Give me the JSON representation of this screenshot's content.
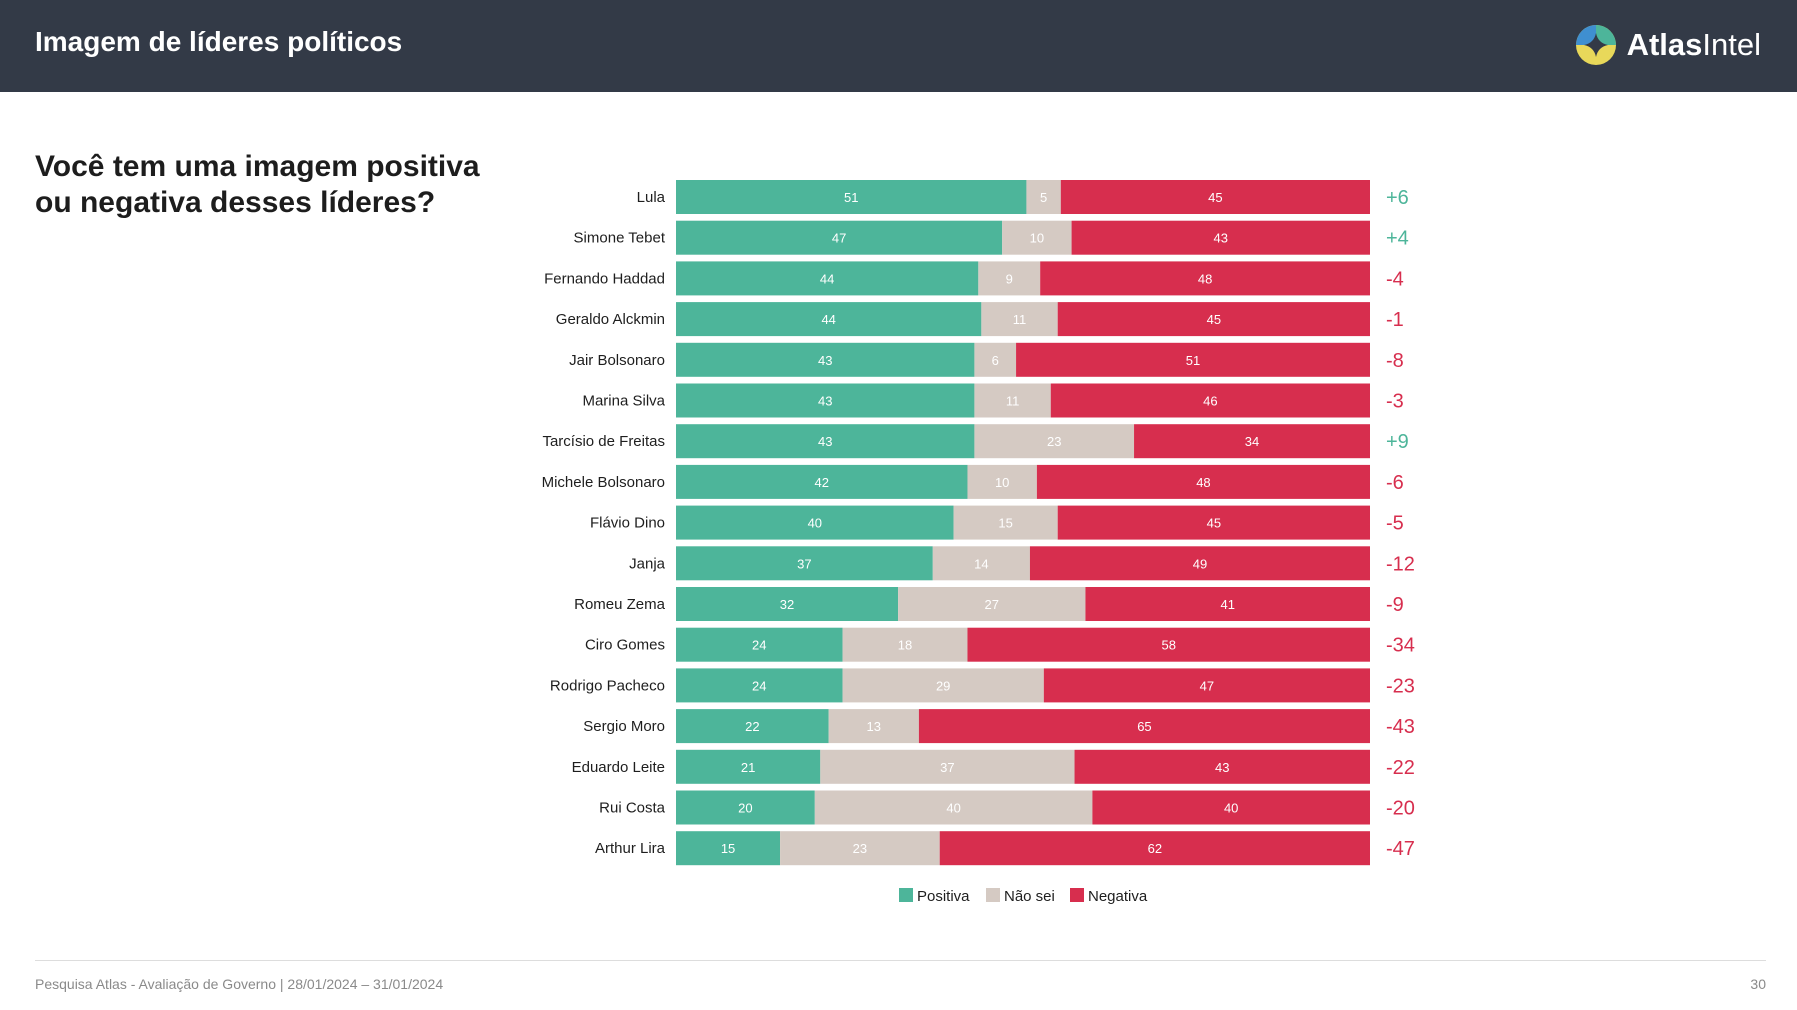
{
  "header": {
    "title": "Imagem de líderes políticos",
    "brand_bold": "Atlas",
    "brand_regular": "Intel"
  },
  "question": "Você tem uma imagem positiva ou negativa desses líderes?",
  "colors": {
    "positive": "#4db59a",
    "unknown": "#d5cac3",
    "negative": "#d72e4e",
    "header_bg": "#333a47"
  },
  "chart_data": {
    "type": "bar",
    "orientation": "horizontal",
    "stacked": true,
    "categories": [
      "Lula",
      "Simone Tebet",
      "Fernando Haddad",
      "Geraldo Alckmin",
      "Jair Bolsonaro",
      "Marina Silva",
      "Tarcísio de Freitas",
      "Michele Bolsonaro",
      "Flávio Dino",
      "Janja",
      "Romeu Zema",
      "Ciro Gomes",
      "Rodrigo Pacheco",
      "Sergio Moro",
      "Eduardo Leite",
      "Rui Costa",
      "Arthur Lira"
    ],
    "series": [
      {
        "name": "Positiva",
        "values": [
          51,
          47,
          44,
          44,
          43,
          43,
          43,
          42,
          40,
          37,
          32,
          24,
          24,
          22,
          21,
          20,
          15
        ]
      },
      {
        "name": "Não sei",
        "values": [
          5,
          10,
          9,
          11,
          6,
          11,
          23,
          10,
          15,
          14,
          27,
          18,
          29,
          13,
          37,
          40,
          23
        ]
      },
      {
        "name": "Negativa",
        "values": [
          45,
          43,
          48,
          45,
          51,
          46,
          34,
          48,
          45,
          49,
          41,
          58,
          47,
          65,
          43,
          40,
          62
        ]
      }
    ],
    "net": [
      "+6",
      "+4",
      "-4",
      "-1",
      "-8",
      "-3",
      "+9",
      "-6",
      "-5",
      "-12",
      "-9",
      "-34",
      "-23",
      "-43",
      "-22",
      "-20",
      "-47"
    ],
    "legend": {
      "position": "bottom",
      "items": [
        "Positiva",
        "Não sei",
        "Negativa"
      ]
    },
    "grid": false
  },
  "footer": {
    "source": "Pesquisa Atlas - Avaliação de Governo | 28/01/2024 – 31/01/2024",
    "page": "30"
  }
}
